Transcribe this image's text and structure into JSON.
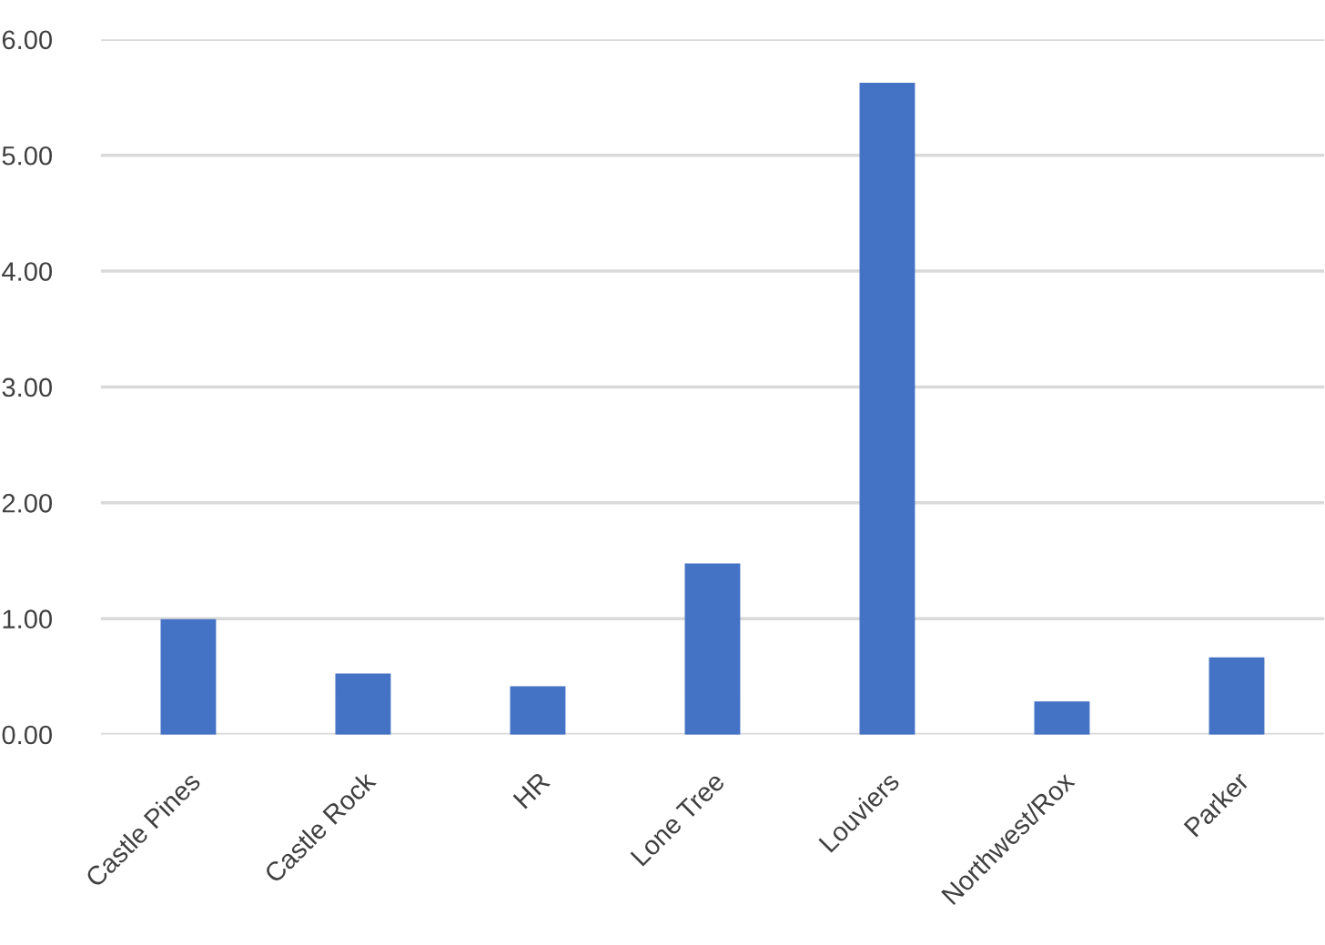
{
  "chart_data": {
    "type": "bar",
    "categories": [
      "Castle Pines",
      "Castle Rock",
      "HR",
      "Lone Tree",
      "Louviers",
      "Northwest/Rox",
      "Parker"
    ],
    "values": [
      0.99,
      0.52,
      0.41,
      1.47,
      5.62,
      0.28,
      0.66
    ],
    "color": "#4472c4",
    "ylim": [
      0,
      6
    ],
    "yticks": [
      {
        "value": 0,
        "label": "0.00"
      },
      {
        "value": 1,
        "label": "1.00"
      },
      {
        "value": 2,
        "label": "2.00"
      },
      {
        "value": 3,
        "label": "3.00"
      },
      {
        "value": 4,
        "label": "4.00"
      },
      {
        "value": 5,
        "label": "5.00"
      },
      {
        "value": 6,
        "label": "6.00"
      }
    ],
    "grid": "y"
  }
}
